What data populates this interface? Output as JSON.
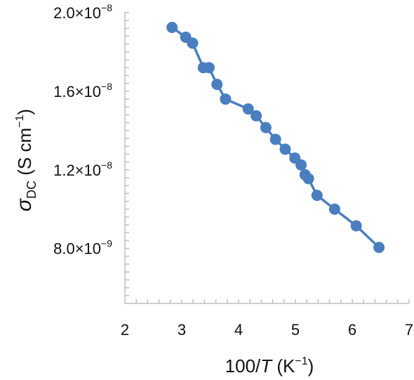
{
  "chart_data": {
    "type": "line",
    "xlabel": {
      "pre": "100/",
      "italic": "T",
      "post": " (K",
      "sup": "−1",
      "end": ")"
    },
    "ylabel": {
      "symbol": "σ",
      "sub": "DC",
      "post": "  (S cm",
      "sup": "−1",
      "end": ")"
    },
    "xlim": [
      2,
      7
    ],
    "ylim": [
      5.2e-09,
      2e-08
    ],
    "x_ticks": [
      {
        "value": 2,
        "label": "2"
      },
      {
        "value": 3,
        "label": "3"
      },
      {
        "value": 4,
        "label": "4"
      },
      {
        "value": 5,
        "label": "5"
      },
      {
        "value": 6,
        "label": "6"
      },
      {
        "value": 7,
        "label": "7"
      }
    ],
    "y_ticks": [
      {
        "value": 2e-08,
        "mant": "2.0×10",
        "exp": "−8"
      },
      {
        "value": 1.6e-08,
        "mant": "1.6×10",
        "exp": "−8"
      },
      {
        "value": 1.2e-08,
        "mant": "1.2×10",
        "exp": "−8"
      },
      {
        "value": 8e-09,
        "mant": "8.0×10",
        "exp": "−9"
      }
    ],
    "minor_x_step": 0.2,
    "minor_y_step": 4e-10,
    "grid": false,
    "series": [
      {
        "color": "#4a7ebf",
        "points": [
          [
            2.83,
            1.925e-08
          ],
          [
            3.07,
            1.875e-08
          ],
          [
            3.19,
            1.845e-08
          ],
          [
            3.38,
            1.72e-08
          ],
          [
            3.48,
            1.72e-08
          ],
          [
            3.62,
            1.635e-08
          ],
          [
            3.77,
            1.56e-08
          ],
          [
            4.17,
            1.51e-08
          ],
          [
            4.31,
            1.475e-08
          ],
          [
            4.48,
            1.415e-08
          ],
          [
            4.65,
            1.355e-08
          ],
          [
            4.82,
            1.305e-08
          ],
          [
            4.99,
            1.26e-08
          ],
          [
            5.1,
            1.225e-08
          ],
          [
            5.17,
            1.175e-08
          ],
          [
            5.23,
            1.155e-08
          ],
          [
            5.38,
            1.07e-08
          ],
          [
            5.69,
            1e-08
          ],
          [
            6.07,
            9.15e-09
          ],
          [
            6.47,
            8.05e-09
          ]
        ]
      }
    ]
  }
}
